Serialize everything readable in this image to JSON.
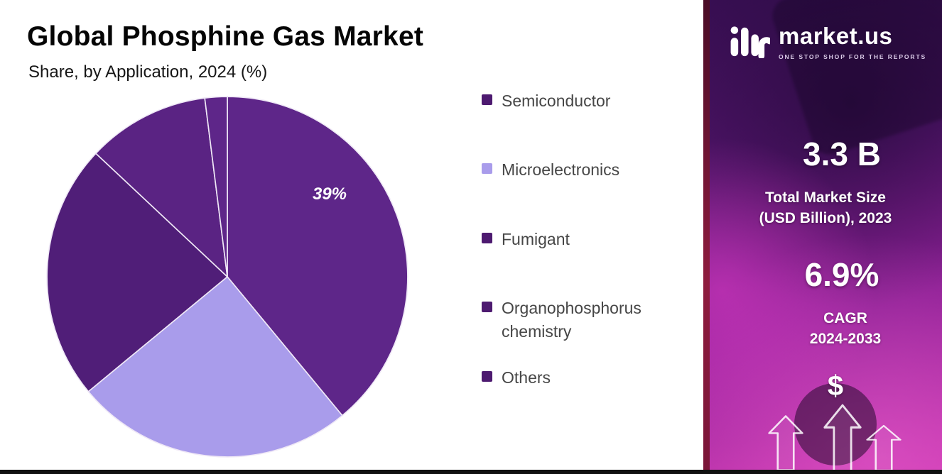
{
  "header": {
    "title": "Global Phosphine Gas Market",
    "subtitle": "Share, by Application, 2024 (%)"
  },
  "chart_data": {
    "type": "pie",
    "title": "Global Phosphine Gas Market",
    "subtitle": "Share, by Application, 2024 (%)",
    "categories": [
      "Semiconductor",
      "Microelectronics",
      "Fumigant",
      "Organophosphorus chemistry",
      "Others"
    ],
    "values": [
      39,
      25,
      23,
      11,
      2
    ],
    "colors": [
      "#5e2689",
      "#a99ceb",
      "#501e78",
      "#5a2383",
      "#5e2689"
    ],
    "legend_position": "right",
    "data_labels": [
      {
        "category": "Semiconductor",
        "text": "39%"
      }
    ]
  },
  "legend": {
    "items": [
      {
        "label": "Semiconductor",
        "color": "#4d1a70"
      },
      {
        "label": "Microelectronics",
        "color": "#a99ceb"
      },
      {
        "label": "Fumigant",
        "color": "#4d1a70"
      },
      {
        "label": "Organophosphorus chemistry",
        "color": "#4d1a70"
      },
      {
        "label": "Others",
        "color": "#4d1a70"
      }
    ]
  },
  "panel": {
    "logo": {
      "icon": "market-us-pulse-icon",
      "name": "market.us",
      "tagline": "ONE STOP SHOP FOR THE REPORTS"
    },
    "stats": [
      {
        "value": "3.3 B",
        "label_lines": [
          "Total Market Size",
          "(USD Billion), 2023"
        ]
      },
      {
        "value": "6.9%",
        "label_lines": [
          "CAGR",
          "2024-2033"
        ]
      }
    ],
    "dollar_symbol": "$",
    "colors": {
      "gradient_top": "#3a0f55",
      "gradient_bottom": "#c936b2",
      "accent_strip": "#7a1538"
    }
  }
}
